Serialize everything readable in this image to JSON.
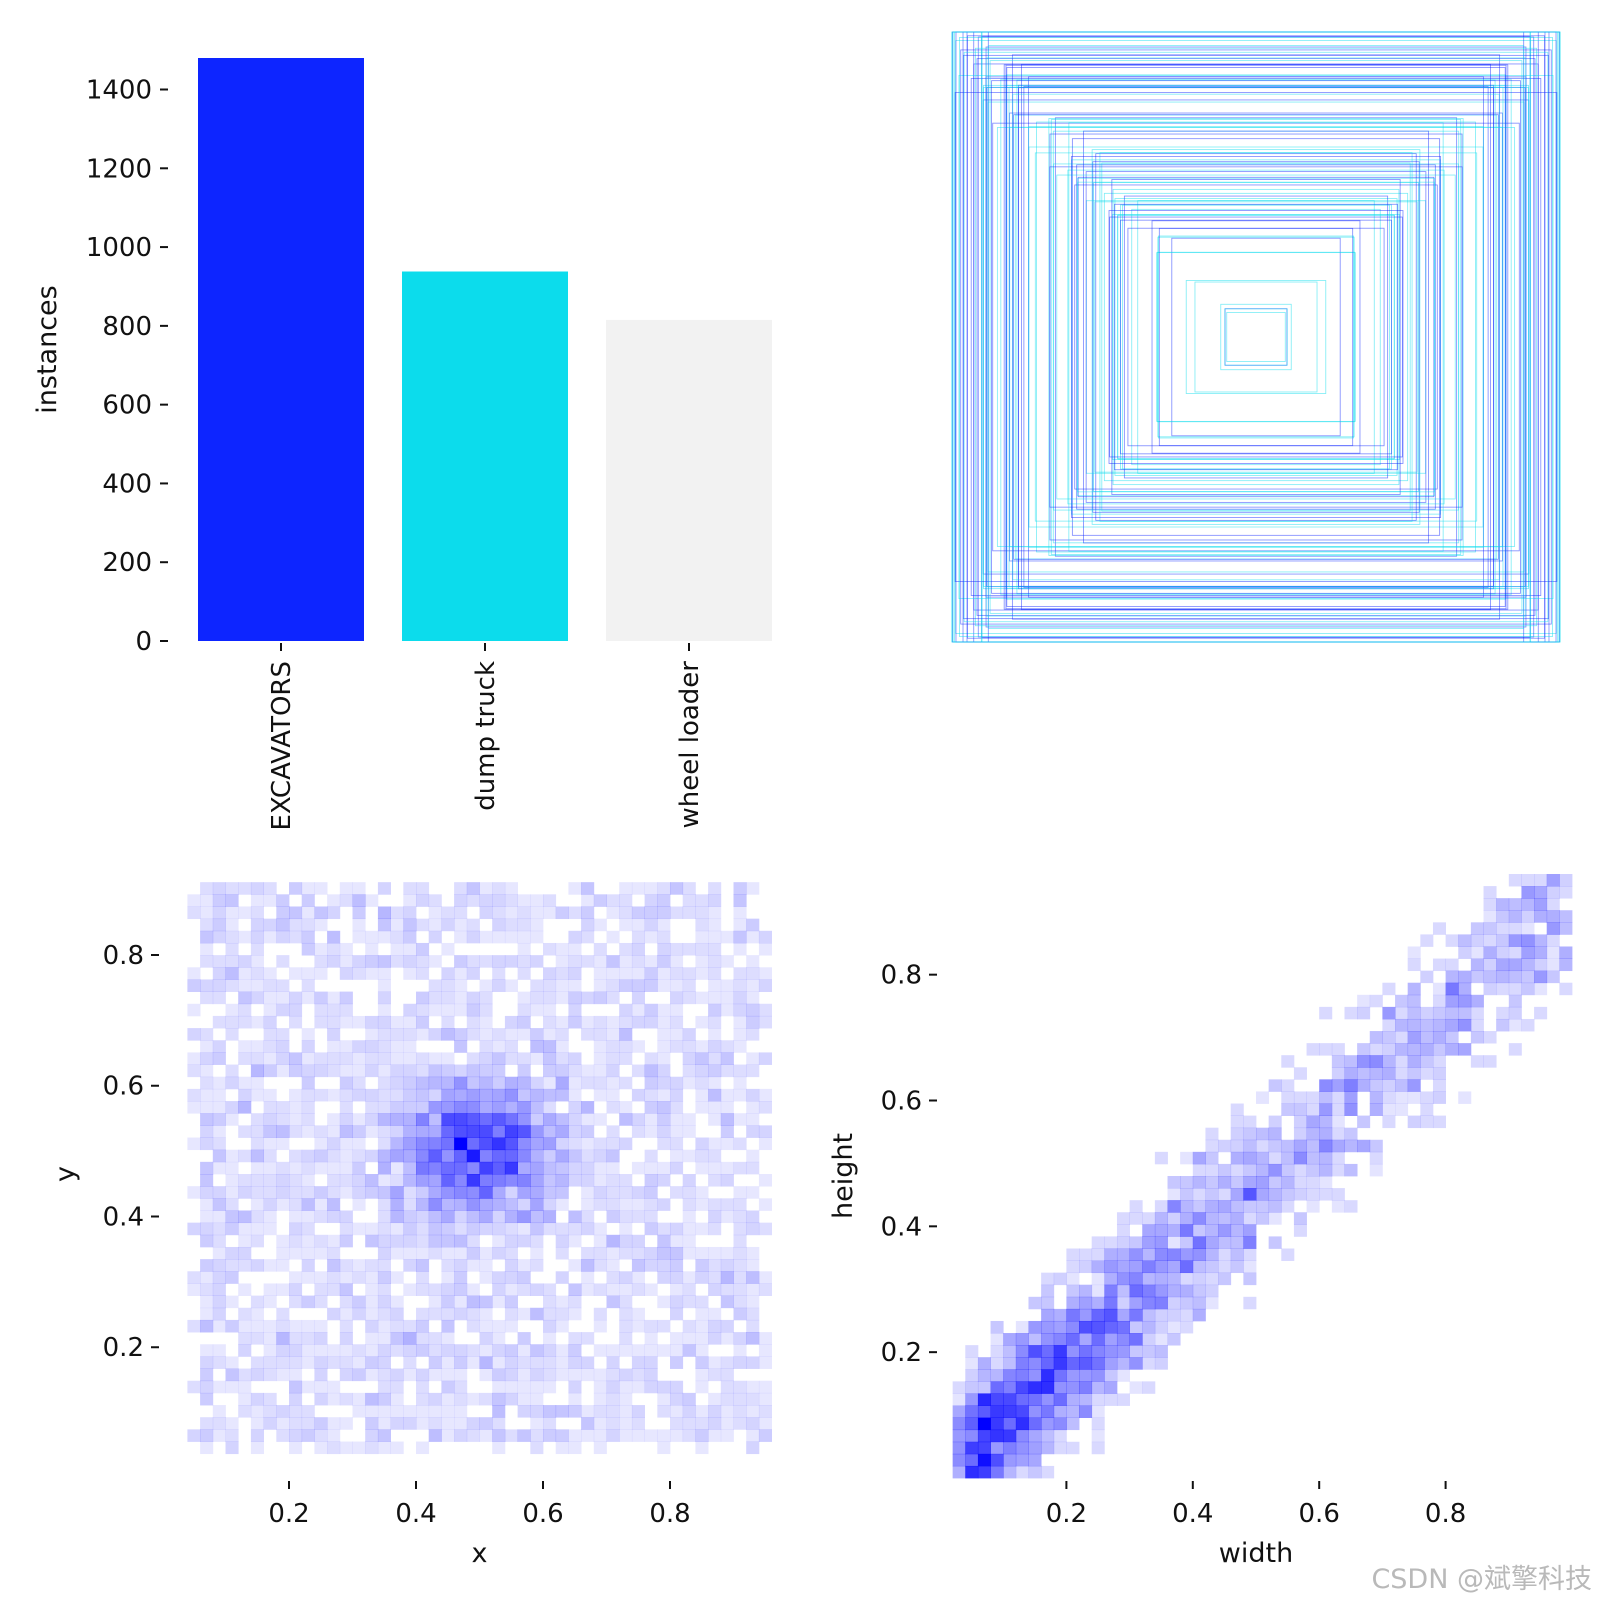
{
  "watermark": "CSDN @斌擎科技",
  "chart_data": [
    {
      "type": "bar",
      "categories": [
        "EXCAVATORS",
        "dump truck",
        "wheel loader"
      ],
      "values": [
        1480,
        938,
        815
      ],
      "colors": [
        "#0d25ff",
        "#0cdcec",
        "#f2f2f2"
      ],
      "ylabel": "instances",
      "xlabel": "",
      "ylim": [
        0,
        1480
      ],
      "yticks": [
        0,
        200,
        400,
        600,
        800,
        1000,
        1200,
        1400
      ],
      "grid": false
    },
    {
      "type": "other",
      "description_kind": "bounding-box overlay",
      "box_count": 120,
      "colors": [
        "#0d25ff",
        "#0cdcec"
      ],
      "axes_visible": false
    },
    {
      "type": "heatmap",
      "xlabel": "x",
      "ylabel": "y",
      "xlim": [
        0.0,
        1.0
      ],
      "ylim": [
        0.0,
        0.93
      ],
      "xticks": [
        0.2,
        0.4,
        0.6,
        0.8
      ],
      "yticks": [
        0.2,
        0.4,
        0.6,
        0.8
      ],
      "bins": 50,
      "peak": [
        0.5,
        0.5
      ],
      "color": "#0000ff"
    },
    {
      "type": "heatmap",
      "xlabel": "width",
      "ylabel": "height",
      "xlim": [
        0.0,
        1.0
      ],
      "ylim": [
        0.0,
        0.96
      ],
      "xticks": [
        0.2,
        0.4,
        0.6,
        0.8
      ],
      "yticks": [
        0.2,
        0.4,
        0.6,
        0.8
      ],
      "bins": 50,
      "peak": [
        0.04,
        0.06
      ],
      "color": "#0000ff"
    }
  ]
}
